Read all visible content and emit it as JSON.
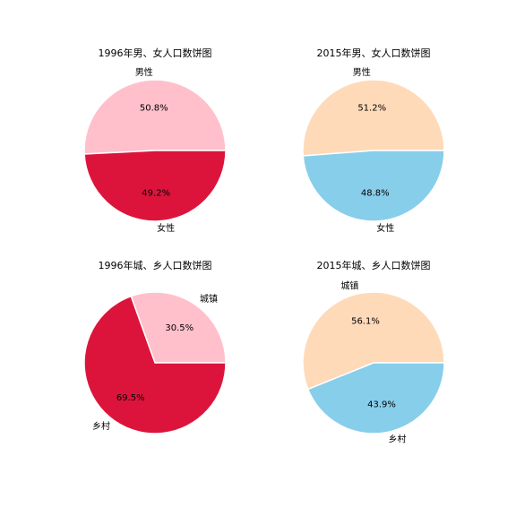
{
  "chart_data": [
    {
      "type": "pie",
      "title": "1996年男、女人口数饼图",
      "categories": [
        "男性",
        "女性"
      ],
      "values": [
        50.8,
        49.2
      ],
      "value_labels": [
        "50.8%",
        "49.2%"
      ],
      "colors": [
        "#ffc0cb",
        "#dc143c"
      ]
    },
    {
      "type": "pie",
      "title": "2015年男、女人口数饼图",
      "categories": [
        "男性",
        "女性"
      ],
      "values": [
        51.2,
        48.8
      ],
      "value_labels": [
        "51.2%",
        "48.8%"
      ],
      "colors": [
        "#ffdab9",
        "#87ceeb"
      ]
    },
    {
      "type": "pie",
      "title": "1996年城、乡人口数饼图",
      "categories": [
        "城镇",
        "乡村"
      ],
      "values": [
        30.5,
        69.5
      ],
      "value_labels": [
        "30.5%",
        "69.5%"
      ],
      "colors": [
        "#ffc0cb",
        "#dc143c"
      ]
    },
    {
      "type": "pie",
      "title": "2015年城、乡人口数饼图",
      "categories": [
        "城镇",
        "乡村"
      ],
      "values": [
        56.1,
        43.9
      ],
      "value_labels": [
        "56.1%",
        "43.9%"
      ],
      "colors": [
        "#ffdab9",
        "#87ceeb"
      ]
    }
  ]
}
